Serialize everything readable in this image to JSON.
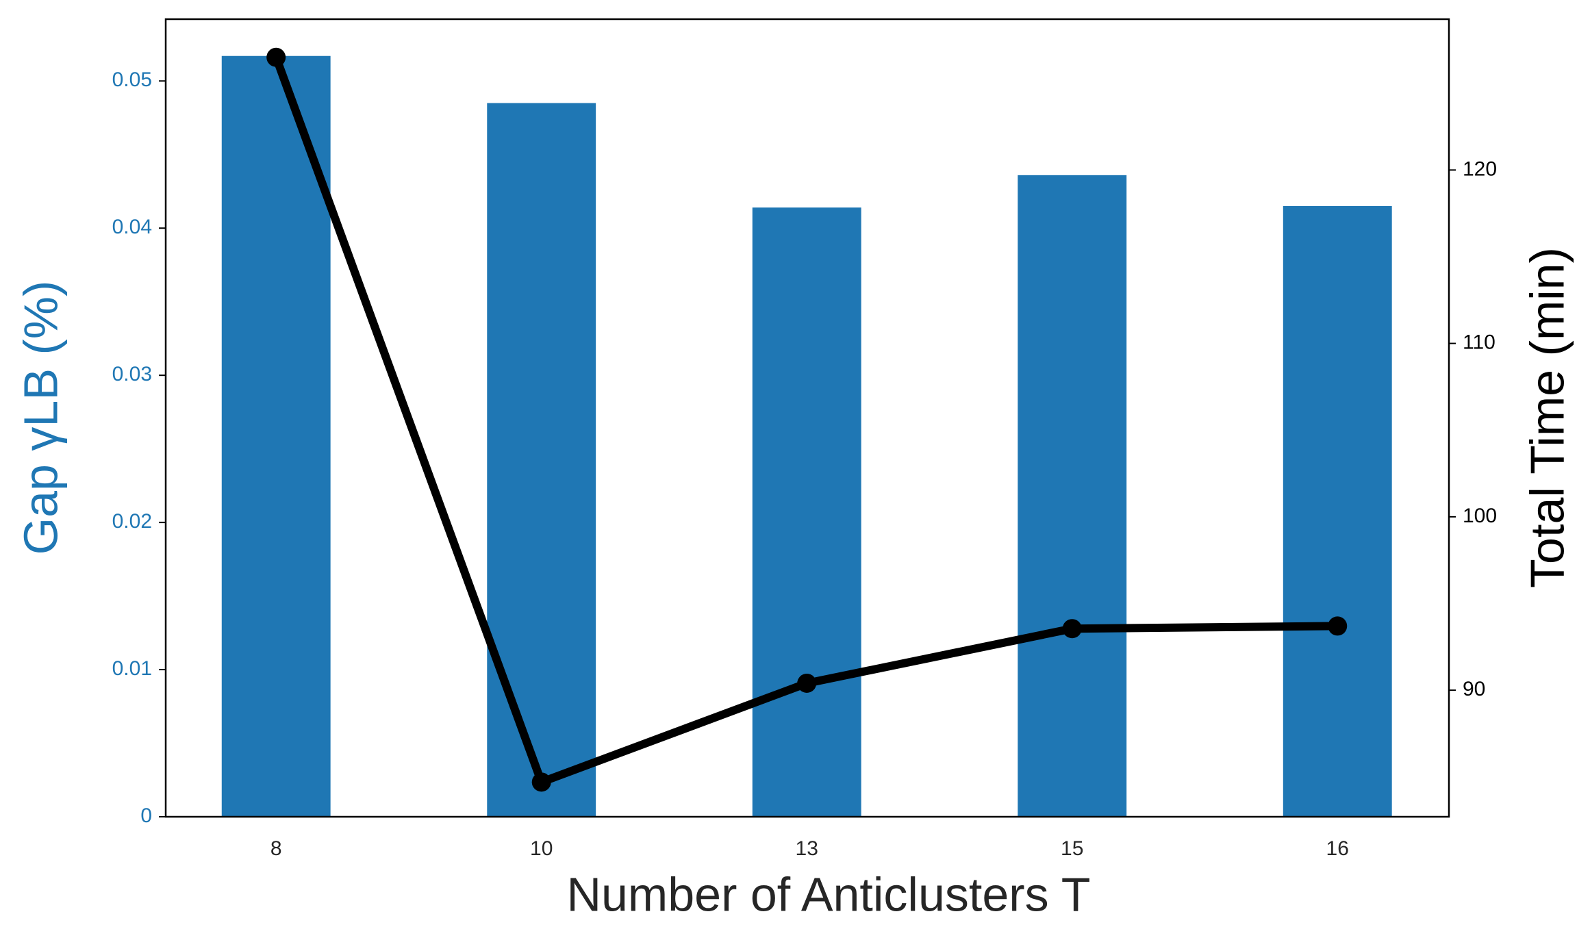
{
  "chart_data": {
    "type": "bar_line",
    "x_label": "Number of Anticlusters T",
    "y_label": "Gap γLB (%)",
    "y2_label": "Total Time (min)",
    "categories": [
      "8",
      "10",
      "13",
      "15",
      "16"
    ],
    "series": [
      {
        "name": "Gap",
        "type": "bar",
        "color": "#1f77b4",
        "values": [
          0.0517,
          0.0485,
          0.0414,
          0.0436,
          0.0415
        ]
      },
      {
        "name": "Total Time",
        "type": "line",
        "axis": "y2",
        "color": "#000000",
        "values": [
          126.5,
          84.7,
          90.4,
          93.55,
          93.7
        ]
      }
    ],
    "ylim": [
      0,
      0.0542
    ],
    "yticks": [
      0,
      {
        "value": 0.01,
        "label": "0.01"
      },
      {
        "value": 0.02,
        "label": "0.02"
      },
      {
        "value": 0.03,
        "label": "0.03"
      },
      {
        "value": 0.04,
        "label": "0.04"
      },
      {
        "value": 0.05,
        "label": "0.05"
      }
    ],
    "y2lim": [
      82.7,
      128.7
    ],
    "y2ticks": [
      90,
      100,
      110,
      120
    ],
    "grid": false
  }
}
